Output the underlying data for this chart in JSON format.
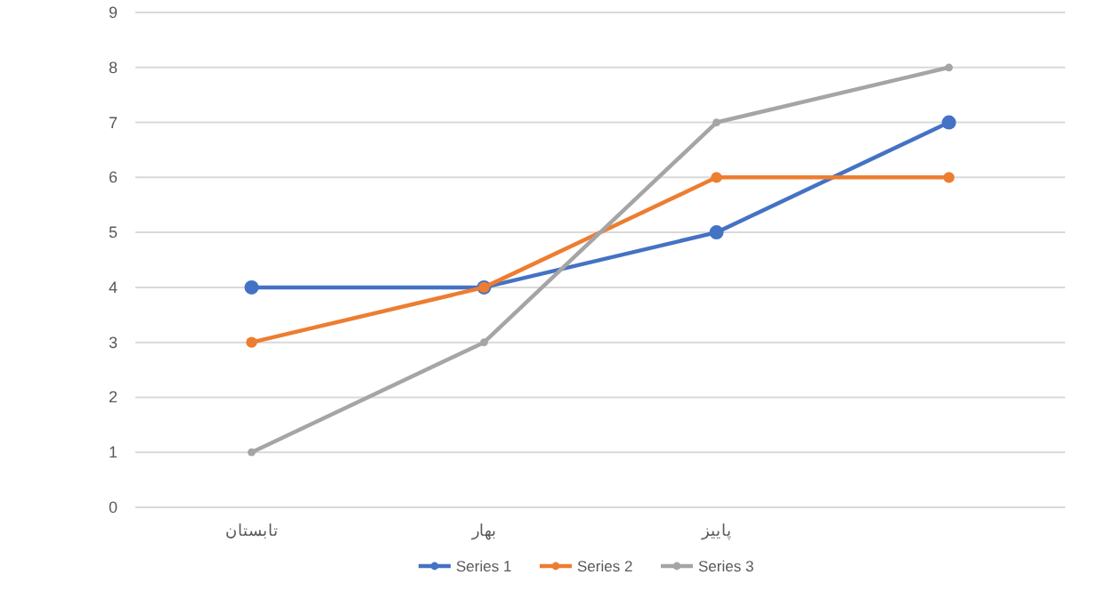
{
  "chart_data": {
    "type": "line",
    "categories": [
      "تابستان",
      "بهار",
      "پاییز",
      null
    ],
    "series": [
      {
        "name": "Series 1",
        "color": "#4472c4",
        "values": [
          4,
          4,
          5,
          7
        ]
      },
      {
        "name": "Series 2",
        "color": "#ed7d31",
        "values": [
          3,
          4,
          6,
          6
        ]
      },
      {
        "name": "Series 3",
        "color": "#a5a5a5",
        "values": [
          1,
          3,
          7,
          8
        ]
      }
    ],
    "ylim": [
      0,
      9
    ],
    "yticks": [
      0,
      1,
      2,
      3,
      4,
      5,
      6,
      7,
      8,
      9
    ],
    "grid": "y",
    "legend": "bottom",
    "marker": "circle"
  }
}
